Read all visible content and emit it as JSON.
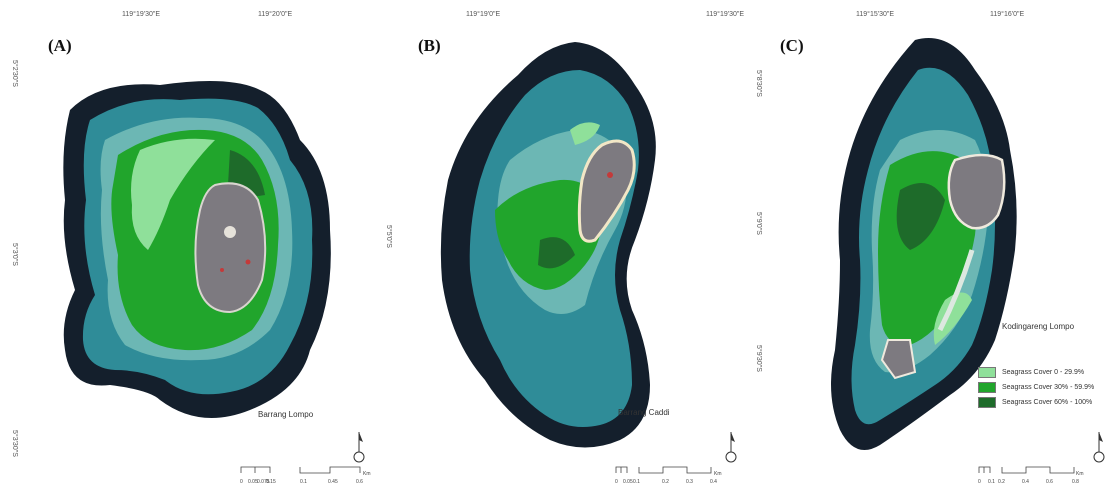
{
  "panels": [
    {
      "label": "(A)",
      "island": "Barrang Lompo",
      "top_coords": [
        "119°19'30\"E",
        "119°20'0\"E"
      ],
      "left_coords": [
        "5°2'30\"S",
        "5°3'0\"S",
        "5°3'30\"S"
      ],
      "scale_labels": [
        "0",
        "0.05",
        "0.075",
        "0.15",
        "0.1",
        "0.45",
        "0.6"
      ],
      "scale_unit": "Km"
    },
    {
      "label": "(B)",
      "island": "Barrang Caddi",
      "top_coords": [
        "119°19'0\"E",
        "119°19'30\"E"
      ],
      "left_coords": [
        "5°5'0\"S"
      ],
      "scale_labels": [
        "0",
        "0.05",
        "0.1",
        "0.1",
        "0.2",
        "0.3",
        "0.4"
      ],
      "scale_unit": "Km"
    },
    {
      "label": "(C)",
      "island": "Kodingareng Lompo",
      "top_coords": [
        "119°15'30\"E",
        "119°16'0\"E"
      ],
      "left_coords": [
        "5°8'30\"S",
        "5°9'0\"S",
        "5°9'30\"S"
      ],
      "scale_labels": [
        "0",
        "0.1",
        "0.2",
        "0.4",
        "0.6",
        "0.8"
      ],
      "scale_unit": "Km"
    }
  ],
  "north_arrow": "N",
  "legend": [
    {
      "label": "Seagrass Cover 0 - 29.9%",
      "color": "#8fe09a"
    },
    {
      "label": "Seagrass Cover 30% - 59.9%",
      "color": "#21a52c"
    },
    {
      "label": "Seagrass Cover 60% - 100%",
      "color": "#1e6b2a"
    }
  ],
  "colors": {
    "deep_water": "#141f2c",
    "shallow_water": "#2f8c98",
    "reef_flat": "#6cb7b4",
    "seagrass_low": "#8fe09a",
    "seagrass_mid": "#21a52c",
    "seagrass_high": "#1e6b2a",
    "island_land": "#7d7a80"
  }
}
